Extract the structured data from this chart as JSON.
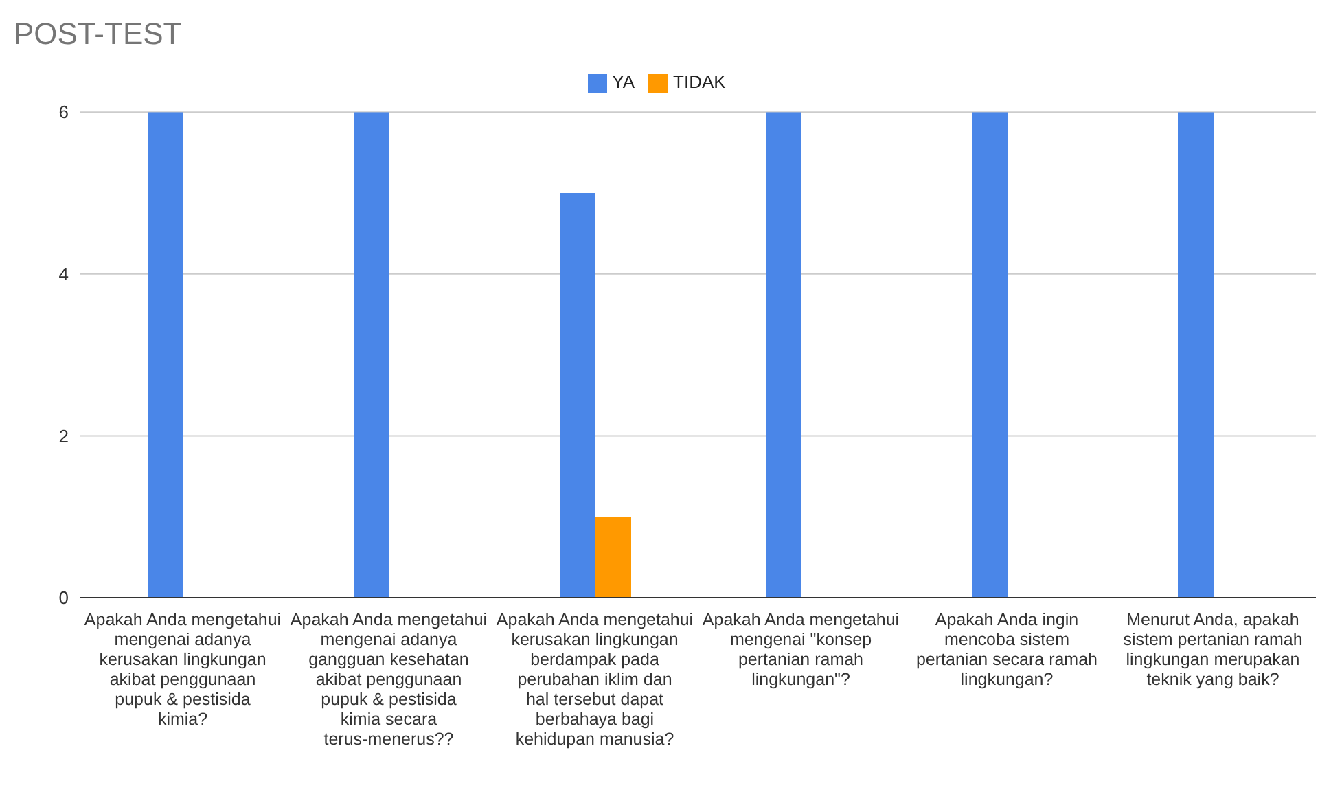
{
  "chart_data": {
    "type": "bar",
    "title": "POST-TEST",
    "categories": [
      "Apakah Anda mengetahui mengenai adanya kerusakan lingkungan akibat penggunaan pupuk & pestisida kimia?",
      "Apakah Anda mengetahui mengenai adanya gangguan kesehatan akibat penggunaan pupuk & pestisida kimia secara terus-menerus??",
      "Apakah Anda mengetahui kerusakan lingkungan berdampak pada perubahan iklim dan hal tersebut dapat berbahaya bagi kehidupan manusia?",
      "Apakah Anda mengetahui mengenai \"konsep pertanian ramah lingkungan\"?",
      "Apakah Anda ingin mencoba sistem pertanian secara ramah lingkungan?",
      "Menurut Anda, apakah sistem pertanian ramah lingkungan merupakan teknik yang baik?"
    ],
    "series": [
      {
        "name": "YA",
        "color": "#4a86e8",
        "values": [
          6,
          6,
          5,
          6,
          6,
          6
        ]
      },
      {
        "name": "TIDAK",
        "color": "#ff9900",
        "values": [
          0,
          0,
          1,
          0,
          0,
          0
        ]
      }
    ],
    "ylim": [
      0,
      6
    ],
    "yticks": [
      0,
      2,
      4,
      6
    ],
    "grid": "y",
    "legend": "top"
  }
}
